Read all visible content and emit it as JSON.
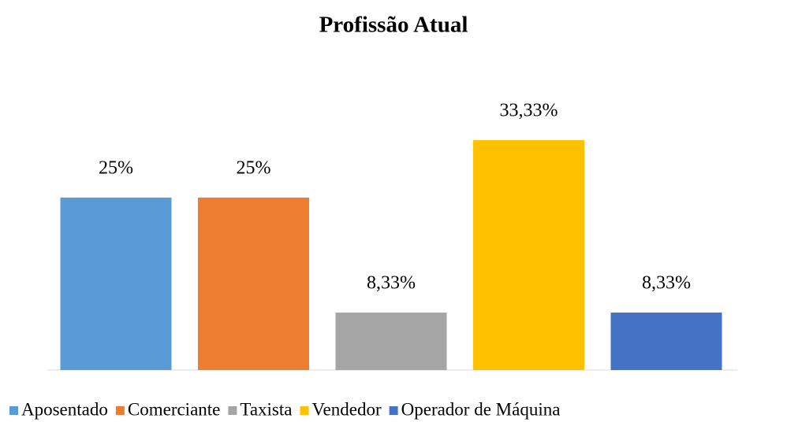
{
  "chart_data": {
    "type": "bar",
    "title": "Profissão Atual",
    "categories": [
      "Aposentado",
      "Comerciante",
      "Taxista",
      "Vendedor",
      "Operador de Máquina"
    ],
    "values": [
      25,
      25,
      8.33,
      33.33,
      8.33
    ],
    "value_labels": [
      "25%",
      "25%",
      "8,33%",
      "33,33%",
      "8,33%"
    ],
    "colors": [
      "#5b9bd5",
      "#ed7d31",
      "#a5a5a5",
      "#ffc000",
      "#4472c4"
    ],
    "legend": "bottom"
  }
}
